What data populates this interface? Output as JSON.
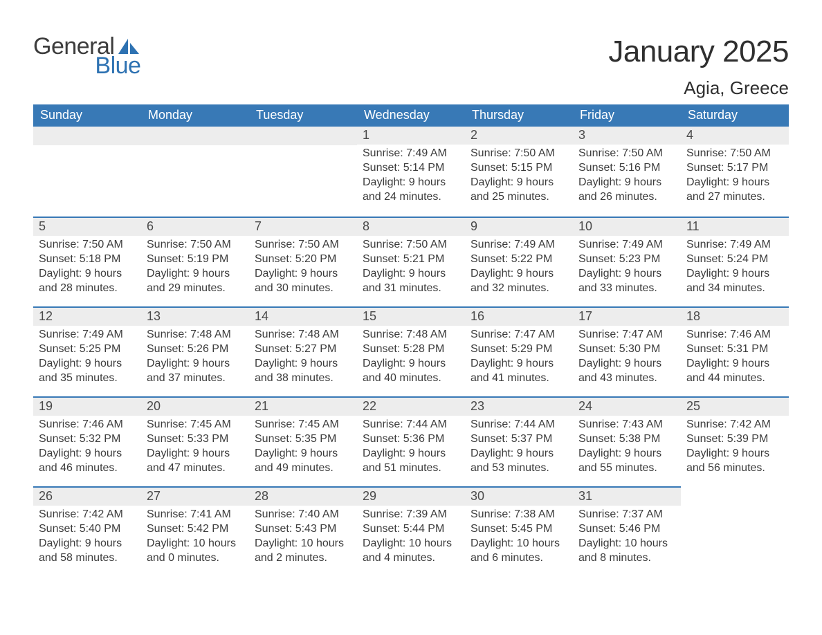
{
  "brand": {
    "general": "General",
    "blue": "Blue",
    "shape_color": "#2e72b2"
  },
  "header": {
    "month_title": "January 2025",
    "location": "Agia, Greece"
  },
  "colors": {
    "header_bg": "#3879b6",
    "header_text": "#ffffff",
    "daynum_bg": "#ededed",
    "daynum_border": "#3879b6",
    "body_text": "#3c3c3c",
    "page_bg": "#ffffff"
  },
  "weekdays": [
    "Sunday",
    "Monday",
    "Tuesday",
    "Wednesday",
    "Thursday",
    "Friday",
    "Saturday"
  ],
  "weeks": [
    [
      {
        "blank": true
      },
      {
        "blank": true
      },
      {
        "blank": true
      },
      {
        "day": "1",
        "sunrise": "Sunrise: 7:49 AM",
        "sunset": "Sunset: 5:14 PM",
        "day1": "Daylight: 9 hours",
        "day2": "and 24 minutes."
      },
      {
        "day": "2",
        "sunrise": "Sunrise: 7:50 AM",
        "sunset": "Sunset: 5:15 PM",
        "day1": "Daylight: 9 hours",
        "day2": "and 25 minutes."
      },
      {
        "day": "3",
        "sunrise": "Sunrise: 7:50 AM",
        "sunset": "Sunset: 5:16 PM",
        "day1": "Daylight: 9 hours",
        "day2": "and 26 minutes."
      },
      {
        "day": "4",
        "sunrise": "Sunrise: 7:50 AM",
        "sunset": "Sunset: 5:17 PM",
        "day1": "Daylight: 9 hours",
        "day2": "and 27 minutes."
      }
    ],
    [
      {
        "day": "5",
        "sunrise": "Sunrise: 7:50 AM",
        "sunset": "Sunset: 5:18 PM",
        "day1": "Daylight: 9 hours",
        "day2": "and 28 minutes."
      },
      {
        "day": "6",
        "sunrise": "Sunrise: 7:50 AM",
        "sunset": "Sunset: 5:19 PM",
        "day1": "Daylight: 9 hours",
        "day2": "and 29 minutes."
      },
      {
        "day": "7",
        "sunrise": "Sunrise: 7:50 AM",
        "sunset": "Sunset: 5:20 PM",
        "day1": "Daylight: 9 hours",
        "day2": "and 30 minutes."
      },
      {
        "day": "8",
        "sunrise": "Sunrise: 7:50 AM",
        "sunset": "Sunset: 5:21 PM",
        "day1": "Daylight: 9 hours",
        "day2": "and 31 minutes."
      },
      {
        "day": "9",
        "sunrise": "Sunrise: 7:49 AM",
        "sunset": "Sunset: 5:22 PM",
        "day1": "Daylight: 9 hours",
        "day2": "and 32 minutes."
      },
      {
        "day": "10",
        "sunrise": "Sunrise: 7:49 AM",
        "sunset": "Sunset: 5:23 PM",
        "day1": "Daylight: 9 hours",
        "day2": "and 33 minutes."
      },
      {
        "day": "11",
        "sunrise": "Sunrise: 7:49 AM",
        "sunset": "Sunset: 5:24 PM",
        "day1": "Daylight: 9 hours",
        "day2": "and 34 minutes."
      }
    ],
    [
      {
        "day": "12",
        "sunrise": "Sunrise: 7:49 AM",
        "sunset": "Sunset: 5:25 PM",
        "day1": "Daylight: 9 hours",
        "day2": "and 35 minutes."
      },
      {
        "day": "13",
        "sunrise": "Sunrise: 7:48 AM",
        "sunset": "Sunset: 5:26 PM",
        "day1": "Daylight: 9 hours",
        "day2": "and 37 minutes."
      },
      {
        "day": "14",
        "sunrise": "Sunrise: 7:48 AM",
        "sunset": "Sunset: 5:27 PM",
        "day1": "Daylight: 9 hours",
        "day2": "and 38 minutes."
      },
      {
        "day": "15",
        "sunrise": "Sunrise: 7:48 AM",
        "sunset": "Sunset: 5:28 PM",
        "day1": "Daylight: 9 hours",
        "day2": "and 40 minutes."
      },
      {
        "day": "16",
        "sunrise": "Sunrise: 7:47 AM",
        "sunset": "Sunset: 5:29 PM",
        "day1": "Daylight: 9 hours",
        "day2": "and 41 minutes."
      },
      {
        "day": "17",
        "sunrise": "Sunrise: 7:47 AM",
        "sunset": "Sunset: 5:30 PM",
        "day1": "Daylight: 9 hours",
        "day2": "and 43 minutes."
      },
      {
        "day": "18",
        "sunrise": "Sunrise: 7:46 AM",
        "sunset": "Sunset: 5:31 PM",
        "day1": "Daylight: 9 hours",
        "day2": "and 44 minutes."
      }
    ],
    [
      {
        "day": "19",
        "sunrise": "Sunrise: 7:46 AM",
        "sunset": "Sunset: 5:32 PM",
        "day1": "Daylight: 9 hours",
        "day2": "and 46 minutes."
      },
      {
        "day": "20",
        "sunrise": "Sunrise: 7:45 AM",
        "sunset": "Sunset: 5:33 PM",
        "day1": "Daylight: 9 hours",
        "day2": "and 47 minutes."
      },
      {
        "day": "21",
        "sunrise": "Sunrise: 7:45 AM",
        "sunset": "Sunset: 5:35 PM",
        "day1": "Daylight: 9 hours",
        "day2": "and 49 minutes."
      },
      {
        "day": "22",
        "sunrise": "Sunrise: 7:44 AM",
        "sunset": "Sunset: 5:36 PM",
        "day1": "Daylight: 9 hours",
        "day2": "and 51 minutes."
      },
      {
        "day": "23",
        "sunrise": "Sunrise: 7:44 AM",
        "sunset": "Sunset: 5:37 PM",
        "day1": "Daylight: 9 hours",
        "day2": "and 53 minutes."
      },
      {
        "day": "24",
        "sunrise": "Sunrise: 7:43 AM",
        "sunset": "Sunset: 5:38 PM",
        "day1": "Daylight: 9 hours",
        "day2": "and 55 minutes."
      },
      {
        "day": "25",
        "sunrise": "Sunrise: 7:42 AM",
        "sunset": "Sunset: 5:39 PM",
        "day1": "Daylight: 9 hours",
        "day2": "and 56 minutes."
      }
    ],
    [
      {
        "day": "26",
        "sunrise": "Sunrise: 7:42 AM",
        "sunset": "Sunset: 5:40 PM",
        "day1": "Daylight: 9 hours",
        "day2": "and 58 minutes."
      },
      {
        "day": "27",
        "sunrise": "Sunrise: 7:41 AM",
        "sunset": "Sunset: 5:42 PM",
        "day1": "Daylight: 10 hours",
        "day2": "and 0 minutes."
      },
      {
        "day": "28",
        "sunrise": "Sunrise: 7:40 AM",
        "sunset": "Sunset: 5:43 PM",
        "day1": "Daylight: 10 hours",
        "day2": "and 2 minutes."
      },
      {
        "day": "29",
        "sunrise": "Sunrise: 7:39 AM",
        "sunset": "Sunset: 5:44 PM",
        "day1": "Daylight: 10 hours",
        "day2": "and 4 minutes."
      },
      {
        "day": "30",
        "sunrise": "Sunrise: 7:38 AM",
        "sunset": "Sunset: 5:45 PM",
        "day1": "Daylight: 10 hours",
        "day2": "and 6 minutes."
      },
      {
        "day": "31",
        "sunrise": "Sunrise: 7:37 AM",
        "sunset": "Sunset: 5:46 PM",
        "day1": "Daylight: 10 hours",
        "day2": "and 8 minutes."
      },
      {
        "blank": true,
        "trailing": true
      }
    ]
  ]
}
